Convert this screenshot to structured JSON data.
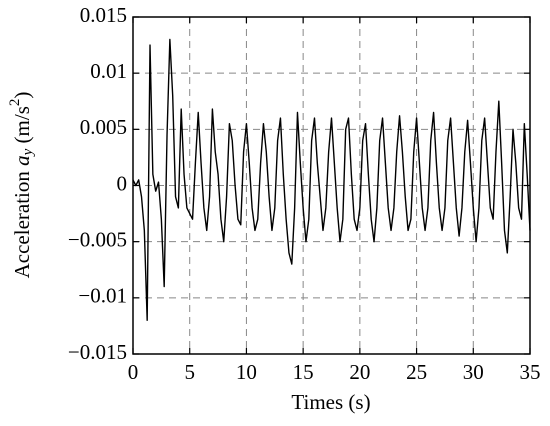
{
  "chart_data": {
    "type": "line",
    "xlabel": "Times (s)",
    "ylabel": [
      "Acceleration ",
      "a",
      "y",
      " (m/s",
      "2",
      ")"
    ],
    "xlim": [
      0,
      35
    ],
    "xticks": [
      0,
      5,
      10,
      15,
      20,
      25,
      30,
      35
    ],
    "ylim": [
      -0.015,
      0.015
    ],
    "yticks": [
      {
        "value": -0.015,
        "label": "−0.015"
      },
      {
        "value": -0.01,
        "label": "−0.01"
      },
      {
        "value": -0.005,
        "label": "−0.005"
      },
      0,
      0.005,
      0.01,
      0.015
    ],
    "grid": true,
    "x": [
      0,
      0.25,
      0.5,
      0.75,
      1,
      1.25,
      1.5,
      1.75,
      2,
      2.25,
      2.5,
      2.75,
      3,
      3.25,
      3.5,
      3.75,
      4,
      4.25,
      4.5,
      4.75,
      5,
      5.25,
      5.5,
      5.75,
      6,
      6.25,
      6.5,
      6.75,
      7,
      7.25,
      7.5,
      7.75,
      8,
      8.25,
      8.5,
      8.75,
      9,
      9.25,
      9.5,
      9.75,
      10,
      10.25,
      10.5,
      10.75,
      11,
      11.25,
      11.5,
      11.75,
      12,
      12.25,
      12.5,
      12.75,
      13,
      13.25,
      13.5,
      13.75,
      14,
      14.25,
      14.5,
      14.75,
      15,
      15.25,
      15.5,
      15.75,
      16,
      16.25,
      16.5,
      16.75,
      17,
      17.25,
      17.5,
      17.75,
      18,
      18.25,
      18.5,
      18.75,
      19,
      19.25,
      19.5,
      19.75,
      20,
      20.25,
      20.5,
      20.75,
      21,
      21.25,
      21.5,
      21.75,
      22,
      22.25,
      22.5,
      22.75,
      23,
      23.25,
      23.5,
      23.75,
      24,
      24.25,
      24.5,
      24.75,
      25,
      25.25,
      25.5,
      25.75,
      26,
      26.25,
      26.5,
      26.75,
      27,
      27.25,
      27.5,
      27.75,
      28,
      28.25,
      28.5,
      28.75,
      29,
      29.25,
      29.5,
      29.75,
      30,
      30.25,
      30.5,
      30.75,
      31,
      31.25,
      31.5,
      31.75,
      32,
      32.25,
      32.5,
      32.75,
      33,
      33.25,
      33.5,
      33.75,
      34,
      34.25,
      34.5,
      34.75,
      35
    ],
    "series": [
      {
        "color": "#000000",
        "values": [
          0.0005,
          0,
          0.0005,
          -0.001,
          -0.004,
          -0.012,
          0.0125,
          0.001,
          -0.0005,
          0.0003,
          -0.003,
          -0.009,
          0.0045,
          0.013,
          0.008,
          -0.001,
          -0.002,
          0.0068,
          0.001,
          -0.002,
          -0.0025,
          -0.003,
          0.002,
          0.0065,
          0.002,
          -0.002,
          -0.004,
          -0.001,
          0.0068,
          0.003,
          0.001,
          -0.003,
          -0.005,
          -0.001,
          0.0055,
          0.004,
          0,
          -0.003,
          -0.0035,
          0.003,
          0.0055,
          0.002,
          -0.002,
          -0.004,
          -0.003,
          0.002,
          0.0055,
          0.003,
          -0.001,
          -0.004,
          -0.002,
          0.004,
          0.006,
          0.001,
          -0.003,
          -0.006,
          -0.007,
          -0.002,
          0.0065,
          0.002,
          -0.002,
          -0.005,
          -0.003,
          0.004,
          0.006,
          0.002,
          -0.001,
          -0.004,
          -0.002,
          0.003,
          0.006,
          0.002,
          -0.002,
          -0.005,
          -0.003,
          0.005,
          0.006,
          0.001,
          -0.003,
          -0.004,
          -0.002,
          0.004,
          0.0055,
          0.001,
          -0.003,
          -0.005,
          -0.002,
          0.004,
          0.006,
          0.002,
          -0.002,
          -0.004,
          -0.002,
          0.003,
          0.0062,
          0.003,
          -0.001,
          -0.004,
          -0.003,
          0.003,
          0.006,
          0.002,
          -0.002,
          -0.004,
          -0.002,
          0.004,
          0.0065,
          0.002,
          -0.002,
          -0.004,
          -0.002,
          0.004,
          0.006,
          0.002,
          -0.002,
          -0.0045,
          -0.002,
          0.003,
          0.0058,
          0.002,
          -0.002,
          -0.005,
          -0.002,
          0.004,
          0.006,
          0.002,
          -0.002,
          -0.003,
          0.003,
          0.0075,
          0.002,
          -0.004,
          -0.006,
          -0.001,
          0.005,
          0.002,
          -0.002,
          -0.003,
          0.0055,
          0.001,
          -0.004
        ]
      }
    ]
  }
}
